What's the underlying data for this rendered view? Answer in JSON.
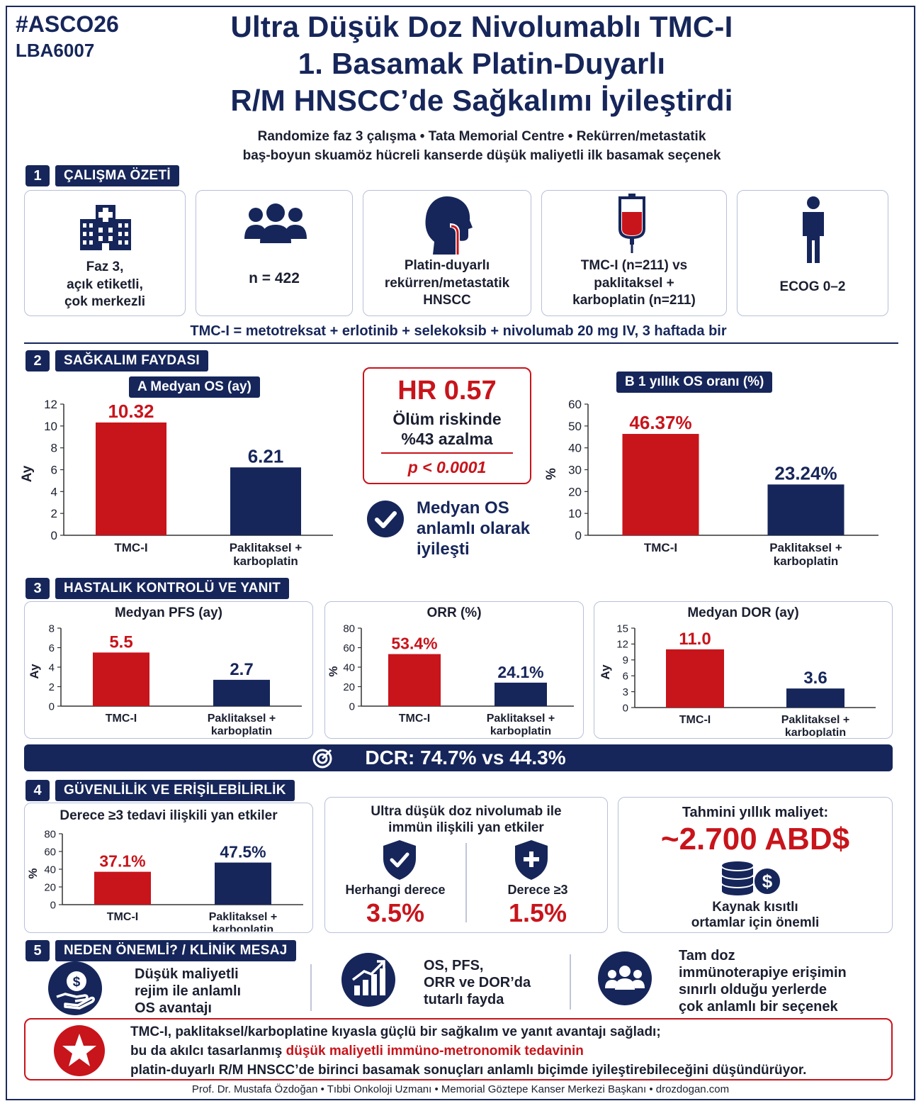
{
  "header": {
    "hashtag": "#ASCO26",
    "abstract": "LBA6007",
    "title_lines": [
      "Ultra Düşük Doz Nivolumablı TMC-I",
      "1. Basamak Platin-Duyarlı",
      "R/M HNSCC’de Sağkalımı İyileştirdi"
    ],
    "subtitle_lines": [
      "Randomize faz 3 çalışma • Tata Memorial Centre • Rekürren/metastatik",
      "baş-boyun skuamöz hücreli kanserde düşük maliyetli ilk basamak seçenek"
    ]
  },
  "section1": {
    "num": "1",
    "label": "ÇALIŞMA ÖZETİ",
    "cards": [
      {
        "icon": "hospital-icon",
        "lines": [
          "Faz 3,",
          "açık etiketli,",
          "çok merkezli"
        ]
      },
      {
        "icon": "people-icon",
        "lines": [
          "n = 422"
        ]
      },
      {
        "icon": "head-neck-icon",
        "lines": [
          "Platin-duyarlı",
          "rekürren/metastatik",
          "HNSCC"
        ]
      },
      {
        "icon": "iv-bag-icon",
        "lines": [
          "TMC-I (n=211) vs",
          "paklitaksel +",
          "karboplatin (n=211)"
        ]
      },
      {
        "icon": "person-icon",
        "lines": [
          "ECOG 0–2"
        ]
      }
    ],
    "regimen": "TMC-I = metotreksat + erlotinib + selekoksib + nivolumab 20 mg IV, 3 haftada bir"
  },
  "section2": {
    "num": "2",
    "label": "SAĞKALIM FAYDASI",
    "hr_box": {
      "hr": "HR 0.57",
      "line1": "Ölüm riskinde",
      "line2": "%43 azalma",
      "p": "p < 0.0001"
    },
    "check_text": [
      "Medyan OS",
      "anlamlı olarak",
      "iyileşti"
    ]
  },
  "section3": {
    "num": "3",
    "label": "HASTALIK KONTROLÜ VE YANIT",
    "dcr": "DCR:  74.7% vs 44.3%"
  },
  "section4": {
    "num": "4",
    "label": "GÜVENLİLİK VE ERİŞİLEBİLİRLİK",
    "irae_title": [
      "Ultra düşük doz nivolumab ile",
      "immün ilişkili yan etkiler"
    ],
    "irae_any_label": "Herhangi derece",
    "irae_any_value": "3.5%",
    "irae_g3_label": "Derece ≥3",
    "irae_g3_value": "1.5%",
    "cost_title": "Tahmini yıllık maliyet:",
    "cost_value": "~2.700 ABD$",
    "cost_note": [
      "Kaynak kısıtlı",
      "ortamlar için önemli"
    ]
  },
  "section5": {
    "num": "5",
    "label": "NEDEN ÖNEMLİ? / KLİNİK MESAJ",
    "items": [
      {
        "icon": "money-hand-icon",
        "lines": [
          "Düşük maliyetli",
          "rejim ile anlamlı",
          "OS avantajı"
        ]
      },
      {
        "icon": "growth-chart-icon",
        "lines": [
          "OS, PFS,",
          "ORR ve DOR’da",
          "tutarlı fayda"
        ]
      },
      {
        "icon": "group-icon",
        "lines": [
          "Tam doz",
          "immünoterapiye erişimin",
          "sınırlı olduğu yerlerde",
          "çok anlamlı bir seçenek"
        ]
      }
    ]
  },
  "conclusion": {
    "line1": "TMC-I, paklitaksel/karboplatine kıyasla güçlü bir  sağkalım ve yanıt  avantajı sağladı;",
    "line2_a": "bu da akılcı tasarlanmış ",
    "line2_b": "düşük maliyetli immüno-metronomik tedavinin",
    "line3": "platin-duyarlı R/M HNSCC’de birinci basamak sonuçları anlamlı biçimde iyileştirebileceğini düşündürüyor."
  },
  "footer": "Prof. Dr. Mustafa Özdoğan  •  Tıbbi Onkoloji Uzmanı  •  Memorial Göztepe Kanser Merkezi Başkanı  •  drozdogan.com",
  "colors": {
    "tmc": "#c8141b",
    "control": "#16265a"
  },
  "chart_data": [
    {
      "id": "os",
      "type": "bar",
      "title": "A  Medyan OS (ay)",
      "ylabel": "Ay",
      "ylim": [
        0,
        12
      ],
      "ticks": [
        0,
        2,
        4,
        6,
        8,
        10,
        12
      ],
      "categories": [
        [
          "TMC-I"
        ],
        [
          "Paklitaksel +",
          "karboplatin"
        ]
      ],
      "values": [
        10.32,
        6.21
      ],
      "labels": [
        "10.32",
        "6.21"
      ]
    },
    {
      "id": "os1y",
      "type": "bar",
      "title": "B  1 yıllık OS oranı (%)",
      "ylabel": "%",
      "ylim": [
        0,
        60
      ],
      "ticks": [
        0,
        10,
        20,
        30,
        40,
        50,
        60
      ],
      "categories": [
        [
          "TMC-I"
        ],
        [
          "Paklitaksel +",
          "karboplatin"
        ]
      ],
      "values": [
        46.37,
        23.24
      ],
      "labels": [
        "46.37%",
        "23.24%"
      ]
    },
    {
      "id": "pfs",
      "type": "bar",
      "title": "Medyan PFS (ay)",
      "ylabel": "Ay",
      "ylim": [
        0,
        8
      ],
      "ticks": [
        0,
        2,
        4,
        6,
        8
      ],
      "categories": [
        [
          "TMC-I"
        ],
        [
          "Paklitaksel +",
          "karboplatin"
        ]
      ],
      "values": [
        5.5,
        2.7
      ],
      "labels": [
        "5.5",
        "2.7"
      ]
    },
    {
      "id": "orr",
      "type": "bar",
      "title": "ORR (%)",
      "ylabel": "%",
      "ylim": [
        0,
        80
      ],
      "ticks": [
        0,
        20,
        40,
        60,
        80
      ],
      "categories": [
        [
          "TMC-I"
        ],
        [
          "Paklitaksel +",
          "karboplatin"
        ]
      ],
      "values": [
        53.4,
        24.1
      ],
      "labels": [
        "53.4%",
        "24.1%"
      ]
    },
    {
      "id": "dor",
      "type": "bar",
      "title": "Medyan DOR (ay)",
      "ylabel": "Ay",
      "ylim": [
        0,
        15
      ],
      "ticks": [
        0,
        3,
        6,
        9,
        12,
        15
      ],
      "categories": [
        [
          "TMC-I"
        ],
        [
          "Paklitaksel +",
          "karboplatin"
        ]
      ],
      "values": [
        11.0,
        3.6
      ],
      "labels": [
        "11.0",
        "3.6"
      ]
    },
    {
      "id": "ae",
      "type": "bar",
      "title": "Derece ≥3 tedavi ilişkili yan etkiler",
      "ylabel": "%",
      "ylim": [
        0,
        80
      ],
      "ticks": [
        0,
        20,
        40,
        60,
        80
      ],
      "categories": [
        [
          "TMC-I"
        ],
        [
          "Paklitaksel +",
          "karboplatin"
        ]
      ],
      "values": [
        37.1,
        47.5
      ],
      "labels": [
        "37.1%",
        "47.5%"
      ]
    }
  ]
}
